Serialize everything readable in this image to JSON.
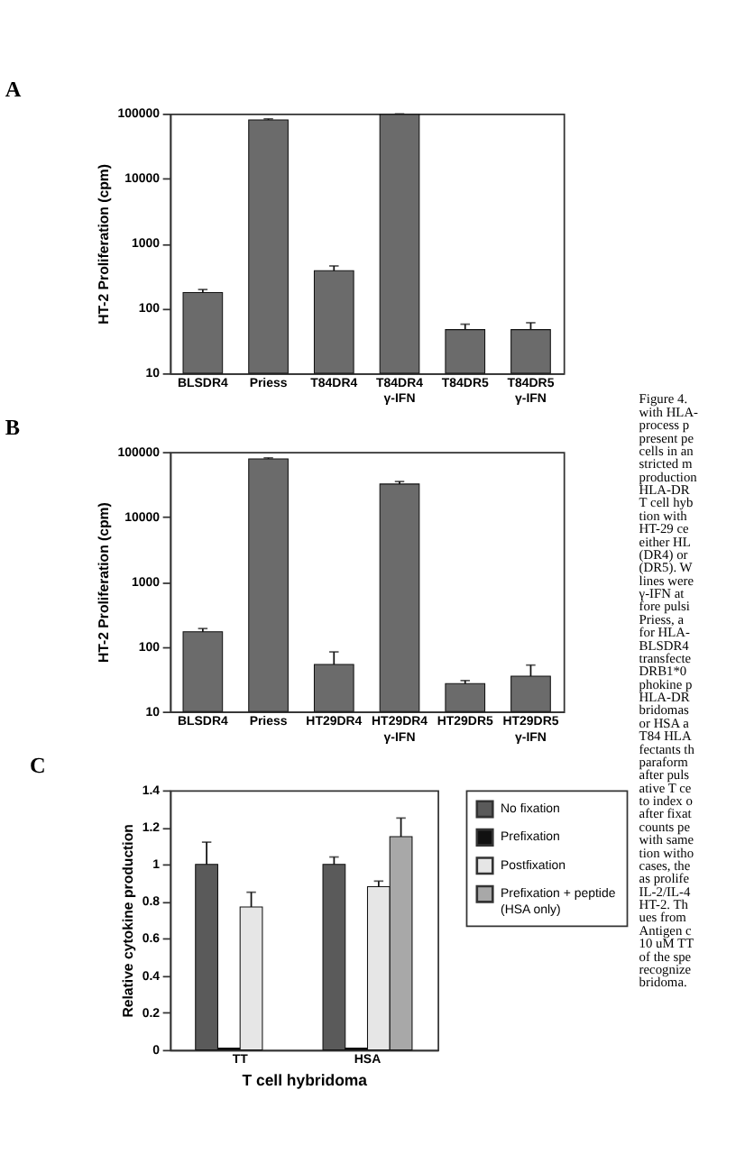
{
  "chart_data": [
    {
      "type": "bar",
      "title": "A",
      "ylabel": "HT-2 Proliferation (cpm)",
      "log": true,
      "ylim": [
        10,
        100000
      ],
      "yticks": [
        10,
        100,
        1000,
        10000,
        100000
      ],
      "grid": false,
      "color": "#6b6b6b",
      "categories": [
        "BLSDR4",
        "Priess",
        "T84DR4",
        "T84DR4\nγ-IFN",
        "T84DR5",
        "T84DR5\nγ-IFN"
      ],
      "values": [
        175,
        80000,
        380,
        97000,
        47,
        47
      ],
      "errors": [
        20,
        3000,
        70,
        2000,
        10,
        13
      ]
    },
    {
      "type": "bar",
      "title": "B",
      "ylabel": "HT-2 Proliferation (cpm)",
      "log": true,
      "ylim": [
        10,
        100000
      ],
      "yticks": [
        10,
        100,
        1000,
        10000,
        100000
      ],
      "grid": false,
      "color": "#6b6b6b",
      "categories": [
        "BLSDR4",
        "Priess",
        "HT29DR4",
        "HT29DR4\nγ-IFN",
        "HT29DR5",
        "HT29DR5\nγ-IFN"
      ],
      "values": [
        170,
        78000,
        53,
        32000,
        27,
        35
      ],
      "errors": [
        20,
        3000,
        30,
        3000,
        3,
        17
      ]
    },
    {
      "type": "bar",
      "title": "C",
      "xlabel": "T cell hybridoma",
      "ylabel": "Relative cytokine production",
      "ylim": [
        0,
        1.4
      ],
      "yticks": [
        0,
        0.2,
        0.4,
        0.6,
        0.8,
        1,
        1.2,
        1.4
      ],
      "grid": false,
      "legend": "right",
      "categories": [
        "TT",
        "HSA"
      ],
      "series": [
        {
          "name": "No fixation",
          "color": "#5a5a5a",
          "values": [
            1.0,
            1.0
          ],
          "errors": [
            0.12,
            0.04
          ]
        },
        {
          "name": "Prefixation",
          "color": "#111111",
          "values": [
            0.01,
            0.01
          ]
        },
        {
          "name": "Postfixation",
          "color": "#e6e6e6",
          "values": [
            0.77,
            0.88
          ],
          "errors": [
            0.08,
            0.03
          ]
        },
        {
          "name": "Prefixation + peptide\n(HSA only)",
          "color": "#a8a8a8",
          "values": [
            null,
            1.15
          ],
          "errors": [
            null,
            0.1
          ]
        }
      ]
    },
    {
      "type": "other",
      "annotations": [
        "Figure 4.",
        "with HLA-",
        "process p",
        "present pe",
        "cells in an",
        "stricted m",
        "production",
        "HLA-DR",
        "T cell hyb",
        "tion with",
        "HT-29 ce",
        "either HL",
        "(DR4) or",
        "(DR5). W",
        "lines were",
        "γ-IFN at",
        "fore pulsi",
        "Priess, a",
        "for HLA-",
        "BLSDR4",
        "transfecte",
        "DRB1*0",
        "phokine p",
        "HLA-DR",
        "bridomas",
        "or HSA a",
        "T84 HLA",
        "fectants th",
        "paraform",
        "after puls",
        "ative T ce",
        "to index o",
        "after fixat",
        "counts pe",
        "with same",
        "tion witho",
        "cases, the",
        "as prolife",
        "IL-2/IL-4",
        "HT-2. Th",
        "ues from",
        "Antigen c",
        "10 uM TT",
        "of the spe",
        "recognize",
        "bridoma."
      ]
    }
  ]
}
